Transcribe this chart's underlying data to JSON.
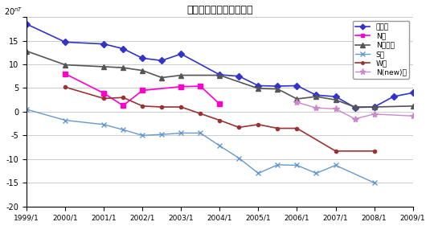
{
  "title": "全磁力繰り返し観測結果",
  "unit_label": "nT",
  "ylim": [
    -20,
    20
  ],
  "yticks": [
    -20,
    -15,
    -10,
    -5,
    0,
    5,
    10,
    15,
    20
  ],
  "xlim": [
    1999,
    2009
  ],
  "xtick_values": [
    1999,
    2000,
    2001,
    2002,
    2003,
    2004,
    2005,
    2006,
    2007,
    2008,
    2009
  ],
  "xtick_labels": [
    "1999/1",
    "2000/1",
    "2001/1",
    "2002/1",
    "2003/1",
    "2004/1",
    "2005/1",
    "2006/1",
    "2007/1",
    "2008/1",
    "2009/1"
  ],
  "series": [
    {
      "name": "連続点",
      "color": "#3333cc",
      "marker": "D",
      "ms": 4,
      "ls": "-",
      "lw": 1.2,
      "x": [
        1999,
        2000,
        2001,
        2001.5,
        2002,
        2002.5,
        2003,
        2004,
        2004.5,
        2005,
        2005.5,
        2006,
        2006.5,
        2007,
        2007.5,
        2008,
        2008.5,
        2009
      ],
      "y": [
        18.5,
        14.7,
        14.3,
        13.3,
        11.3,
        10.8,
        12.2,
        7.8,
        7.5,
        5.5,
        5.4,
        5.5,
        3.5,
        3.2,
        0.9,
        1.0,
        3.2,
        4.0
      ]
    },
    {
      "name": "N点",
      "color": "#ff00cc",
      "marker": "s",
      "ms": 4,
      "ls": "-",
      "lw": 1.2,
      "x": [
        2000,
        2001,
        2001.5,
        2002,
        2003,
        2003.5,
        2004
      ],
      "y": [
        8.0,
        3.9,
        1.3,
        4.5,
        5.3,
        5.4,
        1.6
      ]
    },
    {
      "name": "N参照点",
      "color": "#555555",
      "marker": "^",
      "ms": 5,
      "ls": "-",
      "lw": 1.2,
      "x": [
        1999,
        2000,
        2001,
        2001.5,
        2002,
        2002.5,
        2003,
        2004,
        2005,
        2005.5,
        2006,
        2006.5,
        2007,
        2007.5,
        2008,
        2009
      ],
      "y": [
        12.8,
        9.9,
        9.5,
        9.3,
        8.7,
        7.2,
        7.7,
        7.7,
        4.9,
        4.8,
        2.7,
        3.2,
        2.5,
        1.0,
        1.0,
        1.2
      ]
    },
    {
      "name": "S点",
      "color": "#6699cc",
      "marker": "x",
      "ms": 5,
      "ls": "-",
      "lw": 1.0,
      "x": [
        1999,
        2000,
        2001,
        2001.5,
        2002,
        2002.5,
        2003,
        2003.5,
        2004,
        2004.5,
        2005,
        2005.5,
        2006,
        2006.5,
        2007,
        2008
      ],
      "y": [
        0.5,
        -1.8,
        -2.7,
        -3.8,
        -5.0,
        -4.8,
        -4.5,
        -4.5,
        -7.2,
        -9.8,
        -13.0,
        -11.2,
        -11.3,
        -13.0,
        -11.3,
        -15.0
      ]
    },
    {
      "name": "W点",
      "color": "#993333",
      "marker": "o",
      "ms": 3,
      "ls": "-",
      "lw": 1.2,
      "x": [
        2000,
        2001,
        2001.5,
        2002,
        2002.5,
        2003,
        2003.5,
        2004,
        2004.5,
        2005,
        2005.5,
        2006,
        2007,
        2008
      ],
      "y": [
        5.2,
        2.8,
        3.0,
        1.2,
        1.0,
        1.0,
        -0.4,
        -1.8,
        -3.3,
        -2.7,
        -3.5,
        -3.5,
        -8.3,
        -8.3
      ]
    },
    {
      "name": "N(new)点",
      "color": "#cc88cc",
      "marker": "*",
      "ms": 6,
      "ls": "-",
      "lw": 1.0,
      "x": [
        2006,
        2006.5,
        2007,
        2007.5,
        2008,
        2009
      ],
      "y": [
        2.0,
        0.8,
        0.6,
        -1.5,
        -0.5,
        -0.9
      ]
    }
  ]
}
